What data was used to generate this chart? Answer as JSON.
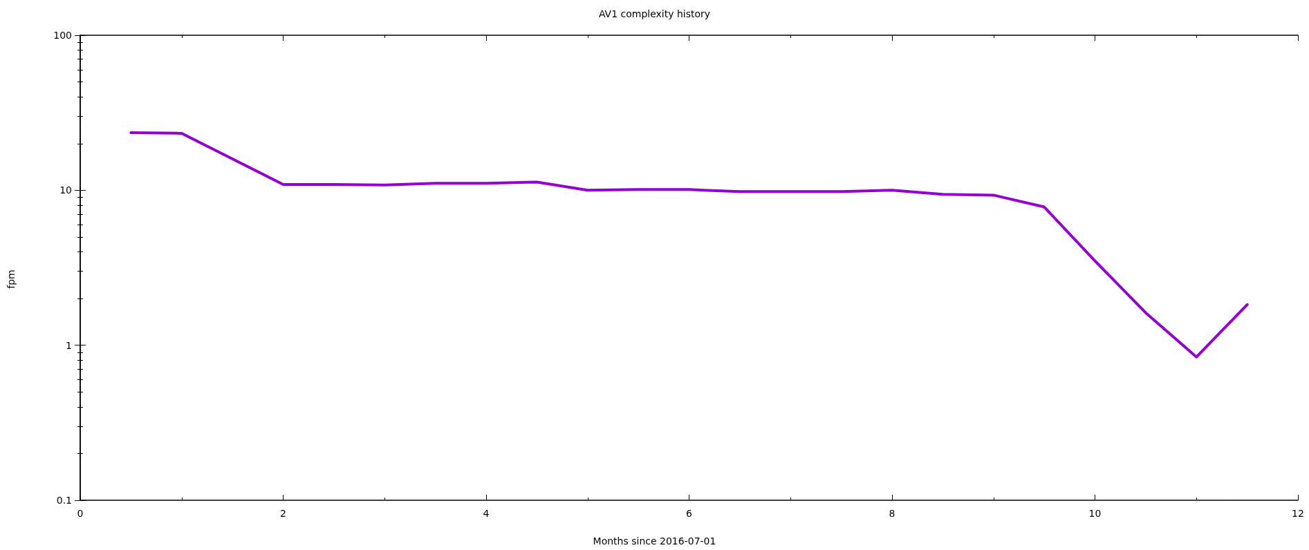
{
  "chart_data": {
    "type": "line",
    "title": "AV1 complexity history",
    "xlabel": "Months since 2016-07-01",
    "ylabel": "fpm",
    "x": [
      0.5,
      1,
      2,
      2.5,
      3,
      3.5,
      4,
      4.5,
      5,
      5.5,
      6,
      6.5,
      7,
      7.5,
      8,
      8.5,
      9,
      9.5,
      10,
      10.5,
      11,
      11.5
    ],
    "series": [
      {
        "color": "#9400d3",
        "values": [
          23.5,
          23.3,
          10.9,
          10.9,
          10.8,
          11.1,
          11.1,
          11.3,
          10.0,
          10.1,
          10.1,
          9.8,
          9.8,
          9.8,
          10.0,
          9.4,
          9.3,
          7.8,
          3.5,
          1.62,
          0.84,
          1.83
        ]
      }
    ],
    "xlim": [
      0,
      12
    ],
    "xticks": [
      0,
      2,
      4,
      6,
      8,
      10,
      12
    ],
    "ylim": [
      0.1,
      100
    ],
    "yticks": [
      0.1,
      1,
      10,
      100
    ],
    "log": "y",
    "marker": "none",
    "line_style": "solid"
  }
}
